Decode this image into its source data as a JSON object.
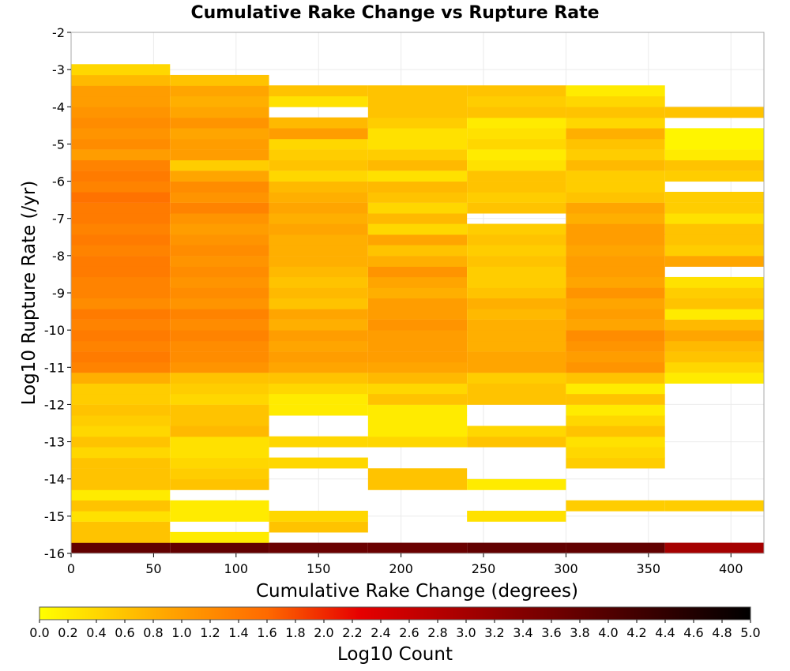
{
  "chart_data": {
    "type": "heatmap",
    "title": "Cumulative Rake Change vs Rupture Rate",
    "xlabel": "Cumulative Rake Change (degrees)",
    "ylabel": "Log10 Rupture Rate (/yr)",
    "xlim": [
      0,
      420
    ],
    "ylim": [
      -16,
      -2
    ],
    "x_ticks": [
      0,
      50,
      100,
      150,
      200,
      250,
      300,
      350,
      400
    ],
    "y_ticks": [
      -2,
      -3,
      -4,
      -5,
      -6,
      -7,
      -8,
      -9,
      -10,
      -11,
      -12,
      -13,
      -14,
      -15,
      -16
    ],
    "grid": true,
    "x_bin_width": 60,
    "y_bin_height": 0.2857,
    "colorbar": {
      "label": "Log10 Count",
      "range": [
        0.0,
        5.0
      ],
      "ticks": [
        "0.0",
        "0.2",
        "0.4",
        "0.6",
        "0.8",
        "1.0",
        "1.2",
        "1.4",
        "1.6",
        "1.8",
        "2.0",
        "2.2",
        "2.4",
        "2.6",
        "2.8",
        "3.0",
        "3.2",
        "3.4",
        "3.6",
        "3.8",
        "4.0",
        "4.2",
        "4.4",
        "4.6",
        "4.8",
        "5.0"
      ],
      "colors": [
        "#ffff00",
        "#ffa500",
        "#ff6a00",
        "#e60000",
        "#8b0000",
        "#000000"
      ]
    },
    "series": [
      {
        "x_start": 0,
        "cells": [
          [
            -16.0,
            3.8
          ],
          [
            -15.71,
            0.6
          ],
          [
            -15.43,
            0.6
          ],
          [
            -15.14,
            0.3
          ],
          [
            -14.86,
            0.6
          ],
          [
            -14.57,
            0.2
          ],
          [
            -14.29,
            0.6
          ],
          [
            -14.0,
            0.6
          ],
          [
            -13.71,
            0.6
          ],
          [
            -13.43,
            0.4
          ],
          [
            -13.14,
            0.6
          ],
          [
            -12.86,
            0.4
          ],
          [
            -12.57,
            0.5
          ],
          [
            -12.29,
            0.6
          ],
          [
            -12.0,
            0.5
          ],
          [
            -11.71,
            0.5
          ],
          [
            -11.43,
            0.8
          ],
          [
            -11.14,
            1.3
          ],
          [
            -10.86,
            1.4
          ],
          [
            -10.57,
            1.3
          ],
          [
            -10.29,
            1.4
          ],
          [
            -10.0,
            1.3
          ],
          [
            -9.71,
            1.4
          ],
          [
            -9.43,
            1.2
          ],
          [
            -9.14,
            1.3
          ],
          [
            -8.86,
            1.3
          ],
          [
            -8.57,
            1.4
          ],
          [
            -8.29,
            1.4
          ],
          [
            -8.0,
            1.3
          ],
          [
            -7.71,
            1.4
          ],
          [
            -7.43,
            1.3
          ],
          [
            -7.14,
            1.4
          ],
          [
            -6.86,
            1.4
          ],
          [
            -6.57,
            1.5
          ],
          [
            -6.29,
            1.3
          ],
          [
            -6.0,
            1.4
          ],
          [
            -5.71,
            1.3
          ],
          [
            -5.43,
            1.0
          ],
          [
            -5.14,
            1.2
          ],
          [
            -4.86,
            1.1
          ],
          [
            -4.57,
            1.2
          ],
          [
            -4.29,
            1.1
          ],
          [
            -4.0,
            1.0
          ],
          [
            -3.71,
            1.0
          ],
          [
            -3.43,
            0.7
          ],
          [
            -3.14,
            0.4
          ]
        ]
      },
      {
        "x_start": 60,
        "cells": [
          [
            -16.0,
            3.8
          ],
          [
            -15.71,
            0.2
          ],
          [
            -15.14,
            0.2
          ],
          [
            -14.86,
            0.2
          ],
          [
            -14.29,
            0.6
          ],
          [
            -14.0,
            0.5
          ],
          [
            -13.71,
            0.4
          ],
          [
            -13.43,
            0.3
          ],
          [
            -13.14,
            0.3
          ],
          [
            -12.86,
            0.7
          ],
          [
            -12.57,
            0.6
          ],
          [
            -12.29,
            0.6
          ],
          [
            -12.0,
            0.4
          ],
          [
            -11.71,
            0.5
          ],
          [
            -11.43,
            0.6
          ],
          [
            -11.14,
            1.1
          ],
          [
            -10.86,
            1.2
          ],
          [
            -10.57,
            1.2
          ],
          [
            -10.29,
            1.3
          ],
          [
            -10.0,
            1.2
          ],
          [
            -9.71,
            1.3
          ],
          [
            -9.43,
            1.1
          ],
          [
            -9.14,
            1.2
          ],
          [
            -8.86,
            1.1
          ],
          [
            -8.57,
            1.2
          ],
          [
            -8.29,
            1.1
          ],
          [
            -8.0,
            1.2
          ],
          [
            -7.71,
            1.1
          ],
          [
            -7.43,
            1.0
          ],
          [
            -7.14,
            1.1
          ],
          [
            -6.86,
            1.3
          ],
          [
            -6.57,
            1.1
          ],
          [
            -6.29,
            1.2
          ],
          [
            -6.0,
            0.9
          ],
          [
            -5.71,
            0.5
          ],
          [
            -5.43,
            1.0
          ],
          [
            -5.14,
            1.0
          ],
          [
            -4.86,
            0.9
          ],
          [
            -4.57,
            1.1
          ],
          [
            -4.29,
            0.9
          ],
          [
            -4.0,
            0.8
          ],
          [
            -3.71,
            0.9
          ],
          [
            -3.43,
            0.6
          ]
        ]
      },
      {
        "x_start": 120,
        "cells": [
          [
            -16.0,
            3.7
          ],
          [
            -15.43,
            0.6
          ],
          [
            -15.14,
            0.4
          ],
          [
            -13.71,
            0.4
          ],
          [
            -13.14,
            0.4
          ],
          [
            -12.29,
            0.2
          ],
          [
            -12.0,
            0.2
          ],
          [
            -11.71,
            0.4
          ],
          [
            -11.43,
            0.6
          ],
          [
            -11.14,
            0.9
          ],
          [
            -10.86,
            1.0
          ],
          [
            -10.57,
            0.9
          ],
          [
            -10.29,
            1.0
          ],
          [
            -10.0,
            0.8
          ],
          [
            -9.71,
            0.9
          ],
          [
            -9.43,
            0.6
          ],
          [
            -9.14,
            0.7
          ],
          [
            -8.86,
            0.6
          ],
          [
            -8.57,
            0.7
          ],
          [
            -8.29,
            0.8
          ],
          [
            -8.0,
            0.8
          ],
          [
            -7.71,
            0.8
          ],
          [
            -7.43,
            0.9
          ],
          [
            -7.14,
            0.8
          ],
          [
            -6.86,
            0.9
          ],
          [
            -6.57,
            0.8
          ],
          [
            -6.29,
            0.7
          ],
          [
            -6.0,
            0.4
          ],
          [
            -5.71,
            0.6
          ],
          [
            -5.43,
            0.5
          ],
          [
            -5.14,
            0.4
          ],
          [
            -4.86,
            1.0
          ],
          [
            -4.57,
            0.7
          ],
          [
            -4.0,
            0.3
          ],
          [
            -3.71,
            0.6
          ]
        ]
      },
      {
        "x_start": 180,
        "cells": [
          [
            -16.0,
            3.7
          ],
          [
            -14.29,
            0.6
          ],
          [
            -14.0,
            0.6
          ],
          [
            -13.14,
            0.4
          ],
          [
            -12.86,
            0.2
          ],
          [
            -12.57,
            0.2
          ],
          [
            -12.29,
            0.2
          ],
          [
            -12.0,
            0.6
          ],
          [
            -11.71,
            0.4
          ],
          [
            -11.43,
            0.7
          ],
          [
            -11.14,
            0.9
          ],
          [
            -10.86,
            1.0
          ],
          [
            -10.57,
            1.0
          ],
          [
            -10.29,
            1.0
          ],
          [
            -10.0,
            1.1
          ],
          [
            -9.71,
            1.0
          ],
          [
            -9.43,
            1.0
          ],
          [
            -9.14,
            0.8
          ],
          [
            -8.86,
            0.9
          ],
          [
            -8.57,
            1.1
          ],
          [
            -8.29,
            0.8
          ],
          [
            -8.0,
            0.6
          ],
          [
            -7.71,
            0.9
          ],
          [
            -7.43,
            0.4
          ],
          [
            -7.14,
            0.7
          ],
          [
            -6.86,
            0.4
          ],
          [
            -6.57,
            0.6
          ],
          [
            -6.29,
            0.7
          ],
          [
            -6.0,
            0.3
          ],
          [
            -5.71,
            0.7
          ],
          [
            -5.43,
            0.5
          ],
          [
            -5.14,
            0.3
          ],
          [
            -4.86,
            0.3
          ],
          [
            -4.57,
            0.5
          ],
          [
            -4.29,
            0.6
          ],
          [
            -4.0,
            0.6
          ],
          [
            -3.71,
            0.6
          ]
        ]
      },
      {
        "x_start": 240,
        "cells": [
          [
            -16.0,
            3.8
          ],
          [
            -15.14,
            0.3
          ],
          [
            -14.29,
            0.2
          ],
          [
            -13.14,
            0.6
          ],
          [
            -12.86,
            0.4
          ],
          [
            -12.0,
            0.6
          ],
          [
            -11.71,
            0.6
          ],
          [
            -11.43,
            0.5
          ],
          [
            -11.14,
            0.9
          ],
          [
            -10.86,
            0.9
          ],
          [
            -10.57,
            0.8
          ],
          [
            -10.29,
            0.8
          ],
          [
            -10.0,
            0.8
          ],
          [
            -9.71,
            0.7
          ],
          [
            -9.43,
            0.8
          ],
          [
            -9.14,
            0.6
          ],
          [
            -8.86,
            0.5
          ],
          [
            -8.57,
            0.5
          ],
          [
            -8.29,
            0.6
          ],
          [
            -8.0,
            0.5
          ],
          [
            -7.71,
            0.6
          ],
          [
            -7.43,
            0.5
          ],
          [
            -6.86,
            0.6
          ],
          [
            -6.57,
            0.5
          ],
          [
            -6.29,
            0.6
          ],
          [
            -6.0,
            0.6
          ],
          [
            -5.71,
            0.3
          ],
          [
            -5.43,
            0.2
          ],
          [
            -5.14,
            0.4
          ],
          [
            -4.86,
            0.3
          ],
          [
            -4.57,
            0.2
          ],
          [
            -4.29,
            0.6
          ],
          [
            -4.0,
            0.5
          ],
          [
            -3.71,
            0.6
          ]
        ]
      },
      {
        "x_start": 300,
        "cells": [
          [
            -16.0,
            3.8
          ],
          [
            -14.86,
            0.5
          ],
          [
            -13.71,
            0.5
          ],
          [
            -13.43,
            0.4
          ],
          [
            -13.14,
            0.3
          ],
          [
            -12.86,
            0.6
          ],
          [
            -12.57,
            0.4
          ],
          [
            -12.29,
            0.2
          ],
          [
            -12.0,
            0.6
          ],
          [
            -11.71,
            0.2
          ],
          [
            -11.43,
            0.6
          ],
          [
            -11.14,
            1.1
          ],
          [
            -10.86,
            1.0
          ],
          [
            -10.57,
            1.1
          ],
          [
            -10.29,
            1.2
          ],
          [
            -10.0,
            0.9
          ],
          [
            -9.71,
            1.0
          ],
          [
            -9.43,
            0.9
          ],
          [
            -9.14,
            1.1
          ],
          [
            -8.86,
            0.9
          ],
          [
            -8.57,
            1.0
          ],
          [
            -8.29,
            1.0
          ],
          [
            -8.0,
            0.9
          ],
          [
            -7.71,
            1.0
          ],
          [
            -7.43,
            1.0
          ],
          [
            -7.14,
            0.8
          ],
          [
            -6.86,
            0.9
          ],
          [
            -6.57,
            0.6
          ],
          [
            -6.29,
            0.5
          ],
          [
            -6.0,
            0.5
          ],
          [
            -5.71,
            0.7
          ],
          [
            -5.43,
            0.5
          ],
          [
            -5.14,
            0.6
          ],
          [
            -4.86,
            0.8
          ],
          [
            -4.57,
            0.4
          ],
          [
            -4.29,
            0.6
          ],
          [
            -4.0,
            0.4
          ],
          [
            -3.71,
            0.2
          ]
        ]
      },
      {
        "x_start": 360,
        "cells": [
          [
            -16.0,
            3.0
          ],
          [
            -14.86,
            0.5
          ],
          [
            -11.43,
            0.2
          ],
          [
            -11.14,
            0.4
          ],
          [
            -10.86,
            0.6
          ],
          [
            -10.57,
            0.7
          ],
          [
            -10.29,
            0.9
          ],
          [
            -10.0,
            0.7
          ],
          [
            -9.71,
            0.2
          ],
          [
            -9.43,
            0.6
          ],
          [
            -9.14,
            0.5
          ],
          [
            -8.86,
            0.3
          ],
          [
            -8.29,
            0.9
          ],
          [
            -8.0,
            0.5
          ],
          [
            -7.71,
            0.6
          ],
          [
            -7.43,
            0.6
          ],
          [
            -7.14,
            0.3
          ],
          [
            -6.86,
            0.5
          ],
          [
            -6.57,
            0.5
          ],
          [
            -6.0,
            0.5
          ],
          [
            -5.71,
            0.6
          ],
          [
            -5.43,
            0.2
          ],
          [
            -5.14,
            0.1
          ],
          [
            -4.86,
            0.1
          ],
          [
            -4.29,
            0.6
          ]
        ]
      }
    ]
  }
}
